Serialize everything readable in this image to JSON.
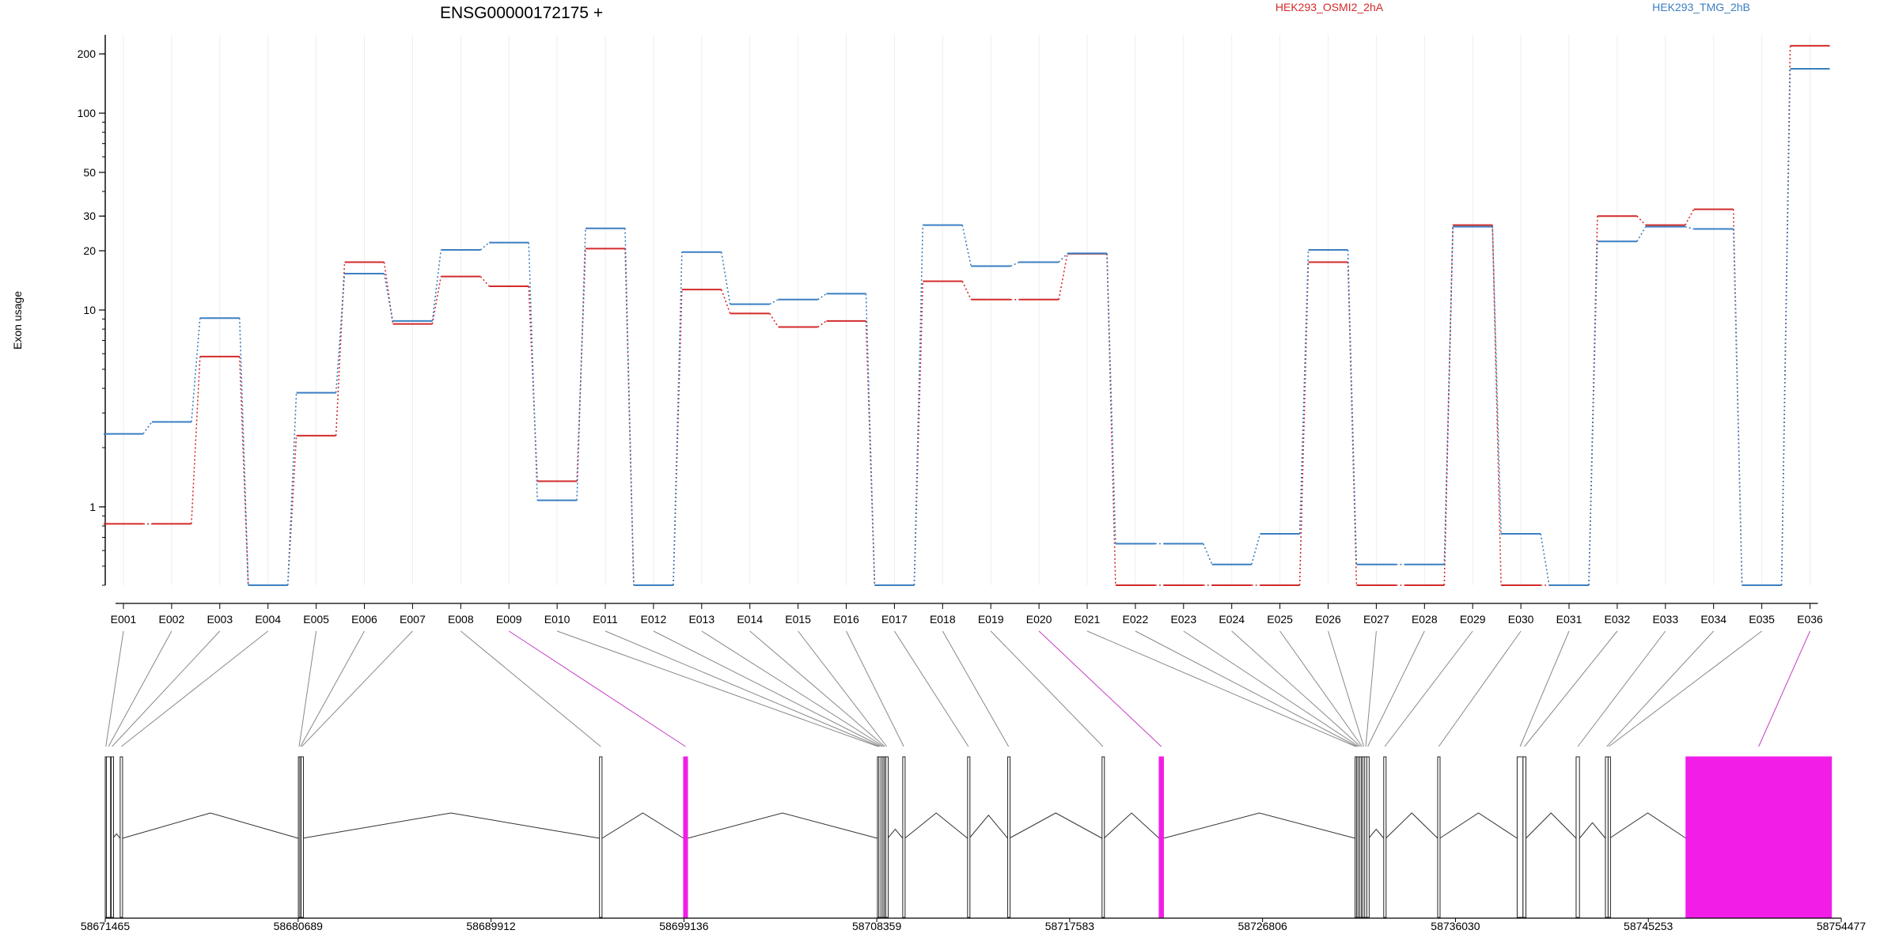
{
  "chart_data": {
    "type": "line",
    "title": "ENSG00000172175 +",
    "ylabel": "Exon usage",
    "yscale": "log",
    "ylim": [
      0.4,
      250
    ],
    "yticks": [
      1,
      10,
      20,
      30,
      50,
      100,
      200
    ],
    "categories": [
      "E001",
      "E002",
      "E003",
      "E004",
      "E005",
      "E006",
      "E007",
      "E008",
      "E009",
      "E010",
      "E011",
      "E012",
      "E013",
      "E014",
      "E015",
      "E016",
      "E017",
      "E018",
      "E019",
      "E020",
      "E021",
      "E022",
      "E023",
      "E024",
      "E025",
      "E026",
      "E027",
      "E028",
      "E029",
      "E030",
      "E031",
      "E032",
      "E033",
      "E034",
      "E035",
      "E036"
    ],
    "series": [
      {
        "name": "HEK293_OSMI2_2hA",
        "color": "#d42a2a",
        "values": [
          0.82,
          0.82,
          5.8,
          0.4,
          2.3,
          17.5,
          8.5,
          14.8,
          13.2,
          1.35,
          20.5,
          0.4,
          12.7,
          9.6,
          8.2,
          8.8,
          0.4,
          14,
          11.3,
          11.3,
          19.3,
          0.4,
          0.4,
          0.4,
          0.4,
          17.5,
          0.4,
          0.4,
          27,
          0.4,
          0.4,
          30,
          27,
          32.5,
          0.4,
          220
        ]
      },
      {
        "name": "HEK293_TMG_2hB",
        "color": "#3a7fc2",
        "values": [
          2.35,
          2.7,
          9.1,
          0.4,
          3.8,
          15.3,
          8.8,
          20.2,
          22,
          1.08,
          26,
          0.4,
          19.7,
          10.7,
          11.3,
          12.1,
          0.4,
          27,
          16.7,
          17.5,
          19.4,
          0.65,
          0.65,
          0.51,
          0.73,
          20.2,
          0.51,
          0.51,
          26.5,
          0.73,
          0.4,
          22.3,
          26.5,
          25.8,
          0.4,
          168
        ]
      }
    ],
    "legend_position": "top",
    "grid": false,
    "gene_model": {
      "coordinates": [
        "58671465",
        "58680689",
        "58689912",
        "58699136",
        "58708359",
        "58717583",
        "58726806",
        "58736030",
        "58745253",
        "58754477"
      ],
      "exons": [
        {
          "id": "E001",
          "start": 58671465,
          "end": 58671520,
          "highlight": false
        },
        {
          "id": "E002",
          "start": 58671520,
          "end": 58671720,
          "highlight": false
        },
        {
          "id": "E003",
          "start": 58671750,
          "end": 58671830,
          "highlight": false
        },
        {
          "id": "E004",
          "start": 58672180,
          "end": 58672290,
          "highlight": false
        },
        {
          "id": "E005",
          "start": 58680700,
          "end": 58680770,
          "highlight": false
        },
        {
          "id": "E006",
          "start": 58680770,
          "end": 58680830,
          "highlight": false
        },
        {
          "id": "E007",
          "start": 58680830,
          "end": 58680890,
          "highlight": false
        },
        {
          "id": "E008",
          "start": 58695100,
          "end": 58695220,
          "highlight": false
        },
        {
          "id": "E009",
          "start": 58699120,
          "end": 58699310,
          "highlight": true
        },
        {
          "id": "E010",
          "start": 58708390,
          "end": 58708460,
          "highlight": false
        },
        {
          "id": "E011",
          "start": 58708460,
          "end": 58708540,
          "highlight": false
        },
        {
          "id": "E012",
          "start": 58708560,
          "end": 58708640,
          "highlight": false
        },
        {
          "id": "E013",
          "start": 58708650,
          "end": 58708720,
          "highlight": false
        },
        {
          "id": "E014",
          "start": 58708720,
          "end": 58708770,
          "highlight": false
        },
        {
          "id": "E015",
          "start": 58708790,
          "end": 58708880,
          "highlight": false
        },
        {
          "id": "E016",
          "start": 58709600,
          "end": 58709700,
          "highlight": false
        },
        {
          "id": "E017",
          "start": 58712700,
          "end": 58712780,
          "highlight": false
        },
        {
          "id": "E018",
          "start": 58714620,
          "end": 58714700,
          "highlight": false
        },
        {
          "id": "E019",
          "start": 58719130,
          "end": 58719220,
          "highlight": false
        },
        {
          "id": "E020",
          "start": 58721860,
          "end": 58722070,
          "highlight": true
        },
        {
          "id": "E021",
          "start": 58731230,
          "end": 58731300,
          "highlight": false
        },
        {
          "id": "E022",
          "start": 58731300,
          "end": 58731370,
          "highlight": false
        },
        {
          "id": "E023",
          "start": 58731370,
          "end": 58731450,
          "highlight": false
        },
        {
          "id": "E024",
          "start": 58731450,
          "end": 58731530,
          "highlight": false
        },
        {
          "id": "E025",
          "start": 58731530,
          "end": 58731600,
          "highlight": false
        },
        {
          "id": "E026",
          "start": 58731600,
          "end": 58731690,
          "highlight": false
        },
        {
          "id": "E027",
          "start": 58731690,
          "end": 58731790,
          "highlight": false
        },
        {
          "id": "E028",
          "start": 58731790,
          "end": 58731880,
          "highlight": false
        },
        {
          "id": "E029",
          "start": 58732600,
          "end": 58732700,
          "highlight": false
        },
        {
          "id": "E030",
          "start": 58735180,
          "end": 58735280,
          "highlight": false
        },
        {
          "id": "E031",
          "start": 58738980,
          "end": 58739260,
          "highlight": false
        },
        {
          "id": "E032",
          "start": 58739260,
          "end": 58739400,
          "highlight": false
        },
        {
          "id": "E033",
          "start": 58741800,
          "end": 58741960,
          "highlight": false
        },
        {
          "id": "E034",
          "start": 58743200,
          "end": 58743330,
          "highlight": false
        },
        {
          "id": "E035",
          "start": 58743330,
          "end": 58743400,
          "highlight": false
        },
        {
          "id": "E036",
          "start": 58747050,
          "end": 58754010,
          "highlight": true
        }
      ]
    }
  },
  "colors": {
    "highlight": "#f21ee8",
    "connector": "#888888",
    "connector_highlight": "#c43ec4"
  }
}
